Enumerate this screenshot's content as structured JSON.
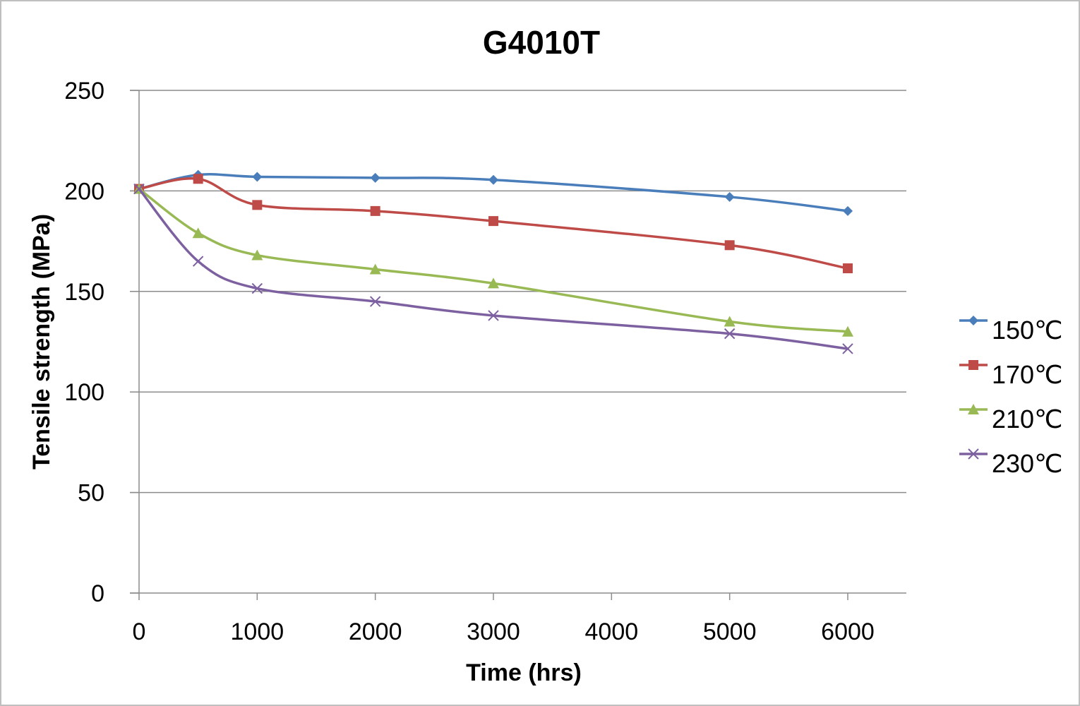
{
  "chart_data": {
    "type": "line",
    "title": "G4010T",
    "xlabel": "Time (hrs)",
    "ylabel": "Tensile strength (MPa)",
    "xlim": [
      0,
      6500
    ],
    "ylim": [
      0,
      250
    ],
    "x_ticks": [
      0,
      1000,
      2000,
      3000,
      4000,
      5000,
      6000
    ],
    "y_ticks": [
      0,
      50,
      100,
      150,
      200,
      250
    ],
    "grid": "horizontal",
    "smooth": true,
    "legend": "right",
    "series": [
      {
        "name": "150℃",
        "color": "#4a7ebb",
        "marker": "diamond",
        "x": [
          0,
          500,
          1000,
          2000,
          3000,
          5000,
          6000
        ],
        "y": [
          201,
          208,
          207,
          206.5,
          205.5,
          197,
          190
        ]
      },
      {
        "name": "170℃",
        "color": "#be4b48",
        "marker": "square",
        "x": [
          0,
          500,
          1000,
          2000,
          3000,
          5000,
          6000
        ],
        "y": [
          201,
          206,
          193,
          190,
          185,
          173,
          161.5
        ]
      },
      {
        "name": "210℃",
        "color": "#98b954",
        "marker": "triangle",
        "x": [
          0,
          500,
          1000,
          2000,
          3000,
          5000,
          6000
        ],
        "y": [
          201,
          179,
          168,
          161,
          154,
          135,
          130
        ]
      },
      {
        "name": "230℃",
        "color": "#7d60a0",
        "marker": "x",
        "x": [
          0,
          500,
          1000,
          2000,
          3000,
          5000,
          6000
        ],
        "y": [
          201,
          165,
          151.5,
          145,
          138,
          129,
          121.5
        ]
      }
    ]
  }
}
